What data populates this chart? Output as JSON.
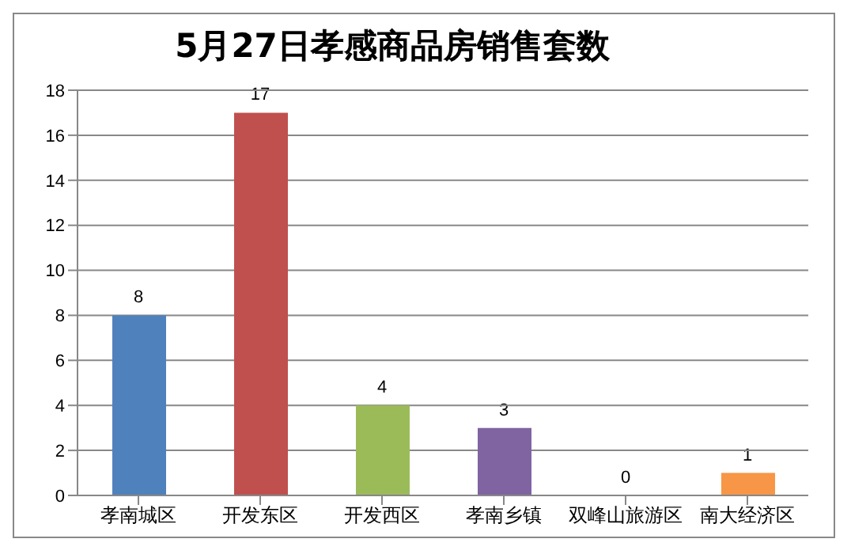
{
  "chart_data": {
    "type": "bar",
    "title": "5月27日孝感商品房销售套数",
    "categories": [
      "孝南城区",
      "开发东区",
      "开发西区",
      "孝南乡镇",
      "双峰山旅游区",
      "南大经济区"
    ],
    "values": [
      8,
      17,
      4,
      3,
      0,
      1
    ],
    "colors": [
      "#4f81bd",
      "#c0504d",
      "#9bbb59",
      "#8064a2",
      "#4bacc6",
      "#f79646"
    ],
    "ylim": [
      0,
      18
    ],
    "yticks": [
      0,
      2,
      4,
      6,
      8,
      10,
      12,
      14,
      16,
      18
    ],
    "grid": "y",
    "data_labels": true
  }
}
